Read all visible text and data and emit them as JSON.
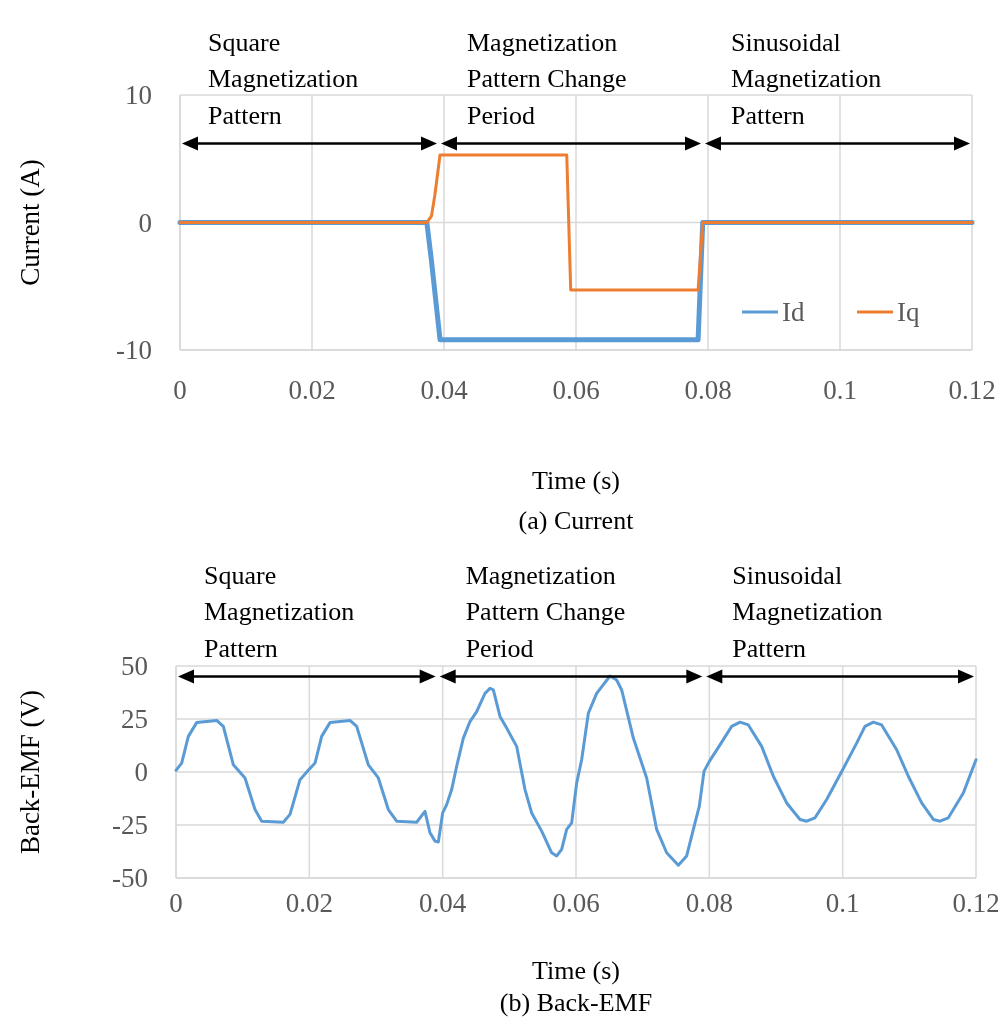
{
  "chart_data": [
    {
      "type": "line",
      "title": "(a) Current",
      "xlabel": "Time (s)",
      "ylabel": "Current (A)",
      "xlim": [
        0,
        0.12
      ],
      "xticks": [
        0,
        0.02,
        0.04,
        0.06,
        0.08,
        0.1,
        0.12
      ],
      "ylim": [
        -10,
        10
      ],
      "yticks": [
        -10,
        0,
        10
      ],
      "grid": true,
      "legend": "bottom right",
      "annotations": [
        "Square Magnetization Pattern",
        "Magnetization Pattern Change Period",
        "Sinusoidal Magnetization Pattern"
      ],
      "series": [
        {
          "name": "Id",
          "color": "#5b9bd5",
          "x": [
            0,
            0.0374,
            0.0381,
            0.0394,
            0.0785,
            0.0792,
            0.12
          ],
          "values": [
            0,
            0,
            -3,
            -9.2,
            -9.2,
            0,
            0
          ]
        },
        {
          "name": "Iq",
          "color": "#ed7d31",
          "x": [
            0,
            0.0374,
            0.0381,
            0.0386,
            0.0394,
            0.0586,
            0.0592,
            0.0785,
            0.0792,
            0.12
          ],
          "values": [
            0,
            0,
            0.5,
            2.1,
            5.3,
            5.3,
            -5.3,
            -5.3,
            0,
            0
          ]
        }
      ]
    },
    {
      "type": "line",
      "title": "(b) Back-EMF",
      "xlabel": "Time (s)",
      "ylabel": "Back-EMF (V)",
      "xlim": [
        0,
        0.12
      ],
      "xticks": [
        0,
        0.02,
        0.04,
        0.06,
        0.08,
        0.1,
        0.12
      ],
      "ylim": [
        -50,
        50
      ],
      "yticks": [
        -50,
        -25,
        0,
        25,
        50
      ],
      "grid": true,
      "annotations": [
        "Square Magnetization Pattern",
        "Magnetization Pattern Change Period",
        "Sinusoidal Magnetization Pattern"
      ],
      "series": [
        {
          "color": "#5b9bd5",
          "x": [
            0,
            0.00085,
            0.00185,
            0.0031,
            0.0061,
            0.0071,
            0.0086,
            0.01035,
            0.01185,
            0.01285,
            0.0161,
            0.0171,
            0.0186,
            0.01985,
            0.02085,
            0.02185,
            0.0231,
            0.0261,
            0.0271,
            0.02885,
            0.03035,
            0.03185,
            0.0331,
            0.0361,
            0.03735,
            0.0381,
            0.03885,
            0.03935,
            0.04,
            0.0406,
            0.04135,
            0.0421,
            0.0431,
            0.0441,
            0.0451,
            0.04635,
            0.0471,
            0.0476,
            0.0486,
            0.0496,
            0.0511,
            0.05235,
            0.05335,
            0.05485,
            0.05635,
            0.0571,
            0.05785,
            0.0586,
            0.05935,
            0.0601,
            0.06085,
            0.06185,
            0.0631,
            0.0651,
            0.0661,
            0.06685,
            0.0686,
            0.0706,
            0.0721,
            0.0736,
            0.07535,
            0.0766,
            0.07785,
            0.0785,
            0.0792,
            0.08,
            0.0816,
            0.08335,
            0.0846,
            0.08585,
            0.08785,
            0.0896,
            0.0916,
            0.0936,
            0.0946,
            0.09585,
            0.0976,
            0.1,
            0.1021,
            0.10335,
            0.1046,
            0.10585,
            0.1081,
            0.10985,
            0.11185,
            0.1136,
            0.1146,
            0.11585,
            0.1181,
            0.12
          ],
          "values": [
            0.8,
            4.2,
            16.8,
            23.3,
            24.3,
            21.5,
            3.4,
            -2.8,
            -17.7,
            -23.2,
            -23.7,
            -20,
            -3.6,
            0.8,
            4.2,
            16.8,
            23.3,
            24.3,
            21.5,
            3.4,
            -2.8,
            -17.7,
            -23.2,
            -23.7,
            -18.6,
            -28.7,
            -32.6,
            -33,
            -19.3,
            -15.4,
            -8.3,
            2.7,
            16,
            23.8,
            28.5,
            37.1,
            39.5,
            38.7,
            26.2,
            20.7,
            12.1,
            -8.3,
            -19.3,
            -27.9,
            -38.1,
            -39.6,
            -36.5,
            -27.1,
            -24,
            -5.2,
            5.8,
            27.7,
            37.1,
            45.3,
            43.4,
            38.7,
            16,
            -2.8,
            -27.1,
            -38.1,
            -44,
            -39.6,
            -24,
            -16.1,
            0.3,
            5,
            12.8,
            21.5,
            23.5,
            22.2,
            12.1,
            -2,
            -14.6,
            -22.4,
            -23.2,
            -21.6,
            -13,
            1.1,
            13.6,
            21.5,
            23.5,
            22.2,
            10.5,
            -2,
            -14.6,
            -22.4,
            -23.2,
            -21.6,
            -9.9,
            5.8
          ]
        }
      ]
    }
  ]
}
